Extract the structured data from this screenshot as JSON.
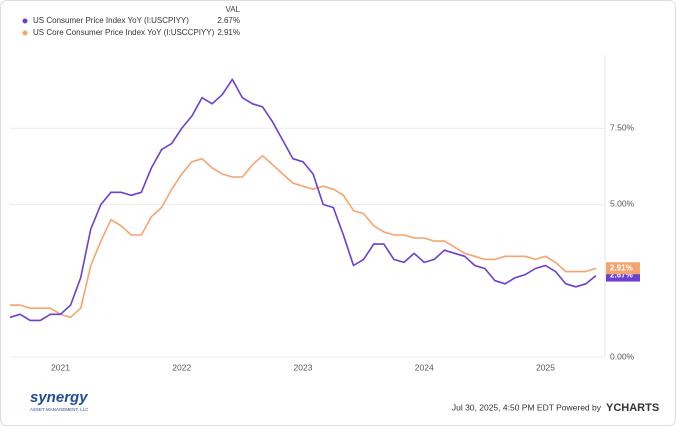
{
  "chart_data": {
    "type": "line",
    "legend_header": "VAL",
    "categories": [
      null,
      null,
      null,
      null,
      null,
      "2021",
      null,
      null,
      null,
      null,
      null,
      null,
      null,
      null,
      null,
      null,
      null,
      "2022",
      null,
      null,
      null,
      null,
      null,
      null,
      null,
      null,
      null,
      null,
      null,
      "2023",
      null,
      null,
      null,
      null,
      null,
      null,
      null,
      null,
      null,
      null,
      null,
      "2024",
      null,
      null,
      null,
      null,
      null,
      null,
      null,
      null,
      null,
      null,
      null,
      "2025",
      null,
      null,
      null,
      null,
      null
    ],
    "series": [
      {
        "name": "US Consumer Price Index YoY (I:USCPIYY)",
        "color": "#6b3fd4",
        "values": [
          1.3,
          1.4,
          1.2,
          1.2,
          1.4,
          1.4,
          1.7,
          2.6,
          4.2,
          5.0,
          5.4,
          5.4,
          5.3,
          5.4,
          6.2,
          6.8,
          7.0,
          7.5,
          7.9,
          8.5,
          8.3,
          8.6,
          9.1,
          8.5,
          8.3,
          8.2,
          7.7,
          7.1,
          6.5,
          6.4,
          6.0,
          5.0,
          4.9,
          4.0,
          3.0,
          3.2,
          3.7,
          3.7,
          3.2,
          3.1,
          3.4,
          3.1,
          3.2,
          3.5,
          3.4,
          3.3,
          3.0,
          2.9,
          2.5,
          2.4,
          2.6,
          2.7,
          2.9,
          3.0,
          2.8,
          2.4,
          2.3,
          2.4,
          2.67
        ],
        "value_labels": [
          null,
          null,
          null,
          null,
          null,
          null,
          null,
          null,
          null,
          null,
          null,
          null,
          null,
          null,
          null,
          null,
          null,
          null,
          null,
          null,
          null,
          null,
          null,
          null,
          null,
          null,
          null,
          null,
          null,
          null,
          null,
          null,
          null,
          null,
          null,
          null,
          null,
          null,
          null,
          null,
          null,
          null,
          null,
          null,
          null,
          null,
          null,
          null,
          null,
          null,
          null,
          null,
          null,
          null,
          null,
          null,
          null,
          null,
          "2.67%"
        ]
      },
      {
        "name": "US Core Consumer Price Index YoY (I:USCCPIYY)",
        "color": "#f6a46f",
        "values": [
          1.7,
          1.7,
          1.6,
          1.6,
          1.6,
          1.4,
          1.3,
          1.6,
          3.0,
          3.8,
          4.5,
          4.3,
          4.0,
          4.0,
          4.6,
          4.9,
          5.5,
          6.0,
          6.4,
          6.5,
          6.2,
          6.0,
          5.9,
          5.9,
          6.3,
          6.6,
          6.3,
          6.0,
          5.7,
          5.6,
          5.5,
          5.6,
          5.5,
          5.3,
          4.8,
          4.7,
          4.3,
          4.1,
          4.0,
          4.0,
          3.9,
          3.9,
          3.8,
          3.8,
          3.6,
          3.4,
          3.3,
          3.2,
          3.2,
          3.3,
          3.3,
          3.3,
          3.2,
          3.3,
          3.1,
          2.8,
          2.8,
          2.8,
          2.91
        ],
        "value_labels": [
          null,
          null,
          null,
          null,
          null,
          null,
          null,
          null,
          null,
          null,
          null,
          null,
          null,
          null,
          null,
          null,
          null,
          null,
          null,
          null,
          null,
          null,
          null,
          null,
          null,
          null,
          null,
          null,
          null,
          null,
          null,
          null,
          null,
          null,
          null,
          null,
          null,
          null,
          null,
          null,
          null,
          null,
          null,
          null,
          null,
          null,
          null,
          null,
          null,
          null,
          null,
          null,
          null,
          null,
          null,
          null,
          null,
          null,
          "2.91%"
        ]
      }
    ],
    "ylim": [
      0,
      9.9
    ],
    "yticks": [
      {
        "value": 0,
        "label": "0.00%"
      },
      {
        "value": 5,
        "label": "5.00%"
      },
      {
        "value": 7.5,
        "label": "7.50%"
      }
    ],
    "grid": true,
    "logo": "synergy",
    "logo_subtitle": "ASSET MANAGEMENT, LLC",
    "footer": "Jul 30, 2025, 4:50 PM EDT Powered by",
    "brand": "YCHARTS"
  }
}
